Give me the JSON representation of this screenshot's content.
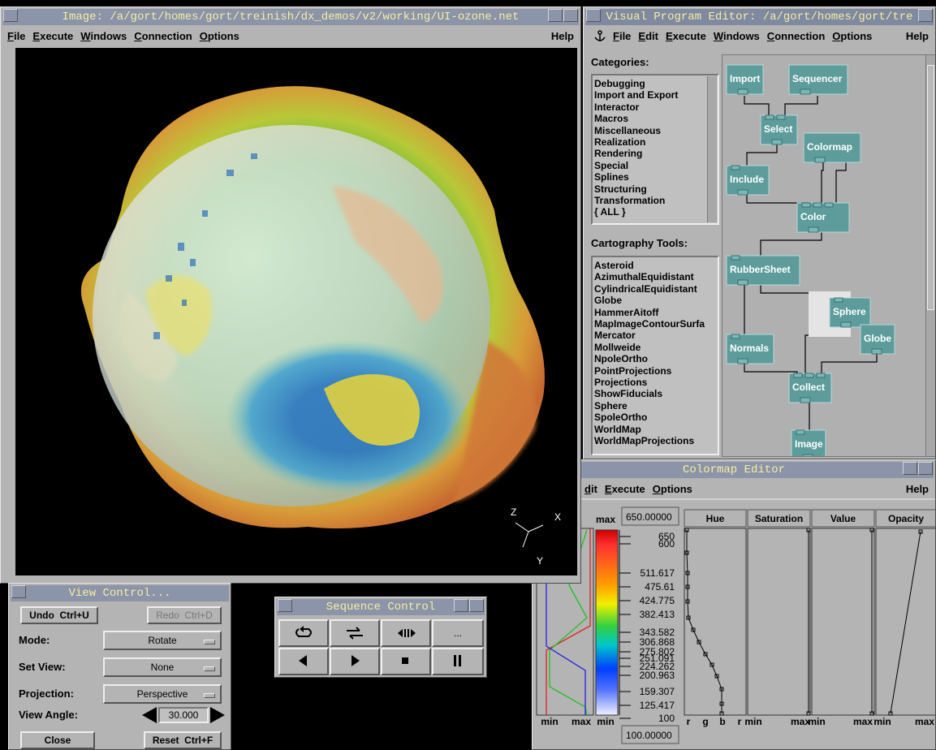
{
  "image_window": {
    "title": "Image: /a/gort/homes/gort/treinish/dx_demos/v2/working/UI-ozone.net",
    "menu": [
      "File",
      "Execute",
      "Windows",
      "Connection",
      "Options"
    ],
    "help": "Help",
    "axes": [
      "Z",
      "X",
      "Y"
    ]
  },
  "vpe": {
    "title": "Visual Program Editor: /a/gort/homes/gort/tre",
    "menu": [
      "File",
      "Edit",
      "Execute",
      "Windows",
      "Connection",
      "Options"
    ],
    "help": "Help",
    "categories_label": "Categories:",
    "categories": [
      "Debugging",
      "Import and Export",
      "Interactor",
      "Macros",
      "Miscellaneous",
      "Realization",
      "Rendering",
      "Special",
      "Splines",
      "Structuring",
      "Transformation",
      "{ ALL }"
    ],
    "tools_label": "Cartography Tools:",
    "tools": [
      "Asteroid",
      "AzimuthalEquidistant",
      "CylindricalEquidistant",
      "Globe",
      "HammerAitoff",
      "MapImageContourSurfa",
      "Mercator",
      "Mollweide",
      "NpoleOrtho",
      "PointProjections",
      "Projections",
      "ShowFiducials",
      "Sphere",
      "SpoleOrtho",
      "WorldMap",
      "WorldMapProjections"
    ],
    "nodes": [
      "Import",
      "Sequencer",
      "Select",
      "Colormap",
      "Include",
      "Color",
      "RubberSheet",
      "Sphere",
      "Globe",
      "Normals",
      "Collect",
      "Image"
    ]
  },
  "colormap": {
    "title": "Colormap Editor",
    "menu": [
      "dit",
      "Execute",
      "Options"
    ],
    "help": "Help",
    "max_label": "max",
    "max_value": "650.00000",
    "min_value": "100.00000",
    "panels": [
      "Hue",
      "Saturation",
      "Value",
      "Opacity"
    ],
    "ticks": [
      "650",
      "600",
      "511.617",
      "475.61",
      "424.775",
      "382.413",
      "343.582",
      "306.868",
      "275.802",
      "251.091",
      "224.262",
      "200.963",
      "159.307",
      "125.417",
      "100"
    ],
    "bottom_labels": [
      "min",
      "max",
      "min",
      "r",
      "g",
      "b",
      "r",
      "min",
      "max",
      "min",
      "max",
      "min",
      "max"
    ]
  },
  "view_control": {
    "title": "View Control...",
    "undo": "Undo  Ctrl+U",
    "redo": "Redo  Ctrl+D",
    "rows": [
      {
        "label": "Mode:",
        "value": "Rotate"
      },
      {
        "label": "Set View:",
        "value": "None"
      },
      {
        "label": "Projection:",
        "value": "Perspective"
      }
    ],
    "angle_label": "View Angle:",
    "angle_value": "30.000",
    "close": "Close",
    "reset": "Reset  Ctrl+F"
  },
  "sequence_control": {
    "title": "Sequence Control",
    "more": "..."
  }
}
